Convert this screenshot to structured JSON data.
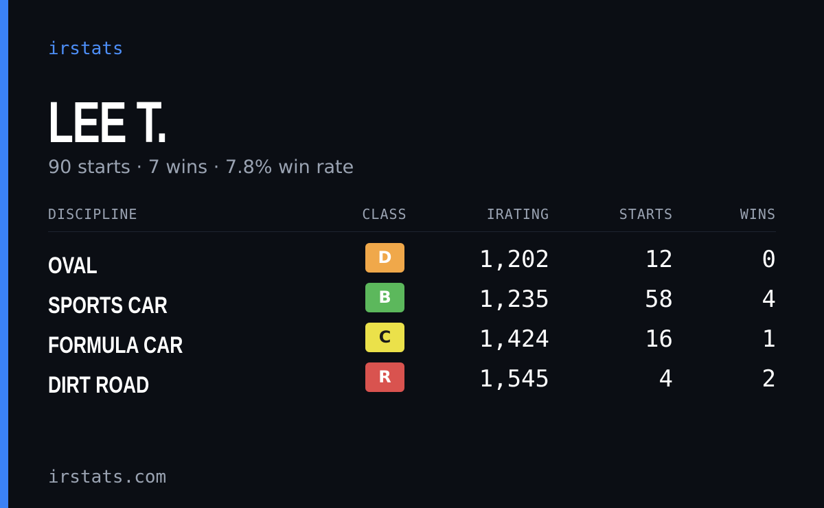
{
  "brand": "irstats",
  "header": {
    "name": "LEE T.",
    "summary": "90 starts · 7 wins · 7.8% win rate"
  },
  "table": {
    "columns": [
      "DISCIPLINE",
      "CLASS",
      "IRATING",
      "STARTS",
      "WINS"
    ],
    "rows": [
      [
        "OVAL",
        "D",
        "1,202",
        "12",
        "0"
      ],
      [
        "SPORTS CAR",
        "B",
        "1,235",
        "58",
        "4"
      ],
      [
        "FORMULA CAR",
        "C",
        "1,424",
        "16",
        "1"
      ],
      [
        "DIRT ROAD",
        "R",
        "1,545",
        "4",
        "2"
      ]
    ]
  },
  "footer": "irstats.com"
}
